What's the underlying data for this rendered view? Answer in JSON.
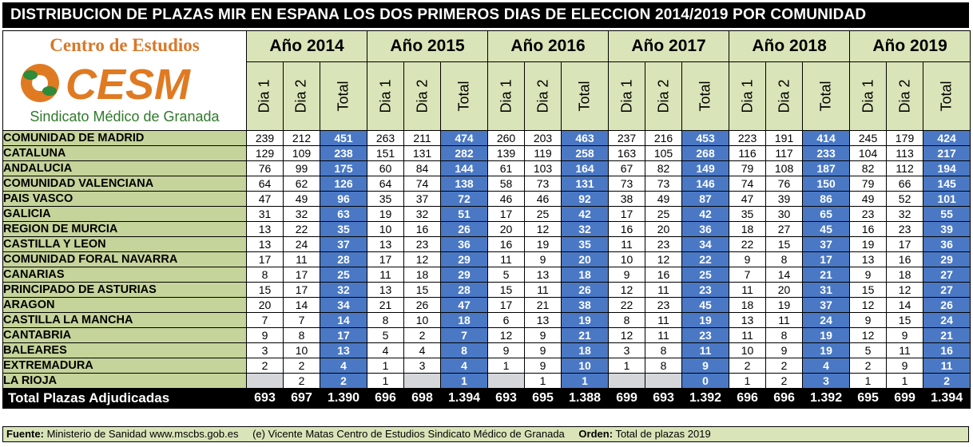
{
  "title": "DISTRIBUCION DE PLAZAS MIR EN ESPANA LOS DOS PRIMEROS DIAS DE ELECCION 2014/2019 POR COMUNIDAD",
  "logo": {
    "line1": "Centro de Estudios",
    "wordmark": "CESM",
    "line2": "Sindicato Médico de Granada"
  },
  "columns": {
    "day1": "Dia 1",
    "day2": "Dia 2",
    "total": "Total"
  },
  "colors": {
    "header_bg": "#d9e4b8",
    "name_bg": "#c5d49a",
    "total_bg": "#4a78c4",
    "blank_bg": "#d4d6da"
  },
  "chart_data": {
    "type": "table",
    "title": "DISTRIBUCION DE PLAZAS MIR EN ESPANA LOS DOS PRIMEROS DIAS DE ELECCION 2014/2019 POR COMUNIDAD",
    "years": [
      "Año 2014",
      "Año 2015",
      "Año 2016",
      "Año 2017",
      "Año 2018",
      "Año 2019"
    ],
    "rows": [
      {
        "name": "COMUNIDAD DE MADRID",
        "values": [
          [
            "239",
            "212",
            "451"
          ],
          [
            "263",
            "211",
            "474"
          ],
          [
            "260",
            "203",
            "463"
          ],
          [
            "237",
            "216",
            "453"
          ],
          [
            "223",
            "191",
            "414"
          ],
          [
            "245",
            "179",
            "424"
          ]
        ]
      },
      {
        "name": "CATALUNA",
        "values": [
          [
            "129",
            "109",
            "238"
          ],
          [
            "151",
            "131",
            "282"
          ],
          [
            "139",
            "119",
            "258"
          ],
          [
            "163",
            "105",
            "268"
          ],
          [
            "116",
            "117",
            "233"
          ],
          [
            "104",
            "113",
            "217"
          ]
        ]
      },
      {
        "name": "ANDALUCIA",
        "values": [
          [
            "76",
            "99",
            "175"
          ],
          [
            "60",
            "84",
            "144"
          ],
          [
            "61",
            "103",
            "164"
          ],
          [
            "67",
            "82",
            "149"
          ],
          [
            "79",
            "108",
            "187"
          ],
          [
            "82",
            "112",
            "194"
          ]
        ]
      },
      {
        "name": "COMUNIDAD VALENCIANA",
        "values": [
          [
            "64",
            "62",
            "126"
          ],
          [
            "64",
            "74",
            "138"
          ],
          [
            "58",
            "73",
            "131"
          ],
          [
            "73",
            "73",
            "146"
          ],
          [
            "74",
            "76",
            "150"
          ],
          [
            "79",
            "66",
            "145"
          ]
        ]
      },
      {
        "name": "PAIS VASCO",
        "values": [
          [
            "47",
            "49",
            "96"
          ],
          [
            "35",
            "37",
            "72"
          ],
          [
            "46",
            "46",
            "92"
          ],
          [
            "38",
            "49",
            "87"
          ],
          [
            "47",
            "39",
            "86"
          ],
          [
            "49",
            "52",
            "101"
          ]
        ]
      },
      {
        "name": "GALICIA",
        "values": [
          [
            "31",
            "32",
            "63"
          ],
          [
            "19",
            "32",
            "51"
          ],
          [
            "17",
            "25",
            "42"
          ],
          [
            "17",
            "25",
            "42"
          ],
          [
            "35",
            "30",
            "65"
          ],
          [
            "23",
            "32",
            "55"
          ]
        ]
      },
      {
        "name": "REGION DE MURCIA",
        "values": [
          [
            "13",
            "22",
            "35"
          ],
          [
            "10",
            "16",
            "26"
          ],
          [
            "20",
            "12",
            "32"
          ],
          [
            "16",
            "20",
            "36"
          ],
          [
            "18",
            "27",
            "45"
          ],
          [
            "16",
            "23",
            "39"
          ]
        ]
      },
      {
        "name": "CASTILLA Y LEON",
        "values": [
          [
            "13",
            "24",
            "37"
          ],
          [
            "13",
            "23",
            "36"
          ],
          [
            "16",
            "19",
            "35"
          ],
          [
            "11",
            "23",
            "34"
          ],
          [
            "22",
            "15",
            "37"
          ],
          [
            "19",
            "17",
            "36"
          ]
        ]
      },
      {
        "name": "COMUNIDAD FORAL NAVARRA",
        "values": [
          [
            "17",
            "11",
            "28"
          ],
          [
            "17",
            "12",
            "29"
          ],
          [
            "11",
            "9",
            "20"
          ],
          [
            "10",
            "12",
            "22"
          ],
          [
            "9",
            "8",
            "17"
          ],
          [
            "13",
            "16",
            "29"
          ]
        ]
      },
      {
        "name": "CANARIAS",
        "values": [
          [
            "8",
            "17",
            "25"
          ],
          [
            "11",
            "18",
            "29"
          ],
          [
            "5",
            "13",
            "18"
          ],
          [
            "9",
            "16",
            "25"
          ],
          [
            "7",
            "14",
            "21"
          ],
          [
            "9",
            "18",
            "27"
          ]
        ]
      },
      {
        "name": "PRINCIPADO DE ASTURIAS",
        "values": [
          [
            "15",
            "17",
            "32"
          ],
          [
            "13",
            "15",
            "28"
          ],
          [
            "15",
            "11",
            "26"
          ],
          [
            "12",
            "11",
            "23"
          ],
          [
            "11",
            "20",
            "31"
          ],
          [
            "15",
            "12",
            "27"
          ]
        ]
      },
      {
        "name": "ARAGON",
        "values": [
          [
            "20",
            "14",
            "34"
          ],
          [
            "21",
            "26",
            "47"
          ],
          [
            "17",
            "21",
            "38"
          ],
          [
            "22",
            "23",
            "45"
          ],
          [
            "18",
            "19",
            "37"
          ],
          [
            "12",
            "14",
            "26"
          ]
        ]
      },
      {
        "name": "CASTILLA LA MANCHA",
        "values": [
          [
            "7",
            "7",
            "14"
          ],
          [
            "8",
            "10",
            "18"
          ],
          [
            "6",
            "13",
            "19"
          ],
          [
            "8",
            "11",
            "19"
          ],
          [
            "13",
            "11",
            "24"
          ],
          [
            "9",
            "15",
            "24"
          ]
        ]
      },
      {
        "name": "CANTABRIA",
        "values": [
          [
            "9",
            "8",
            "17"
          ],
          [
            "5",
            "2",
            "7"
          ],
          [
            "12",
            "9",
            "21"
          ],
          [
            "12",
            "11",
            "23"
          ],
          [
            "11",
            "8",
            "19"
          ],
          [
            "12",
            "9",
            "21"
          ]
        ]
      },
      {
        "name": "BALEARES",
        "values": [
          [
            "3",
            "10",
            "13"
          ],
          [
            "4",
            "4",
            "8"
          ],
          [
            "9",
            "9",
            "18"
          ],
          [
            "3",
            "8",
            "11"
          ],
          [
            "10",
            "9",
            "19"
          ],
          [
            "5",
            "11",
            "16"
          ]
        ]
      },
      {
        "name": "EXTREMADURA",
        "values": [
          [
            "2",
            "2",
            "4"
          ],
          [
            "1",
            "3",
            "4"
          ],
          [
            "1",
            "9",
            "10"
          ],
          [
            "1",
            "8",
            "9"
          ],
          [
            "2",
            "2",
            "4"
          ],
          [
            "2",
            "9",
            "11"
          ]
        ]
      },
      {
        "name": "LA RIOJA",
        "values": [
          [
            "",
            "2",
            "2"
          ],
          [
            "1",
            "",
            "1"
          ],
          [
            "",
            "1",
            "1"
          ],
          [
            "",
            "",
            "0"
          ],
          [
            "1",
            "2",
            "3"
          ],
          [
            "1",
            "1",
            "2"
          ]
        ]
      }
    ],
    "total_row": {
      "name": "Total Plazas Adjudicadas",
      "values": [
        [
          "693",
          "697",
          "1.390"
        ],
        [
          "696",
          "698",
          "1.394"
        ],
        [
          "693",
          "695",
          "1.388"
        ],
        [
          "699",
          "693",
          "1.392"
        ],
        [
          "696",
          "696",
          "1.392"
        ],
        [
          "695",
          "699",
          "1.394"
        ]
      ]
    }
  },
  "footer": {
    "source_label": "Fuente:",
    "source_text": "Ministerio de Sanidad www.mscbs.gob.es",
    "author_text": "(e) Vicente Matas Centro de Estudios Sindicato Médico de Granada",
    "order_label": "Orden:",
    "order_text": "Total de plazas 2019"
  }
}
